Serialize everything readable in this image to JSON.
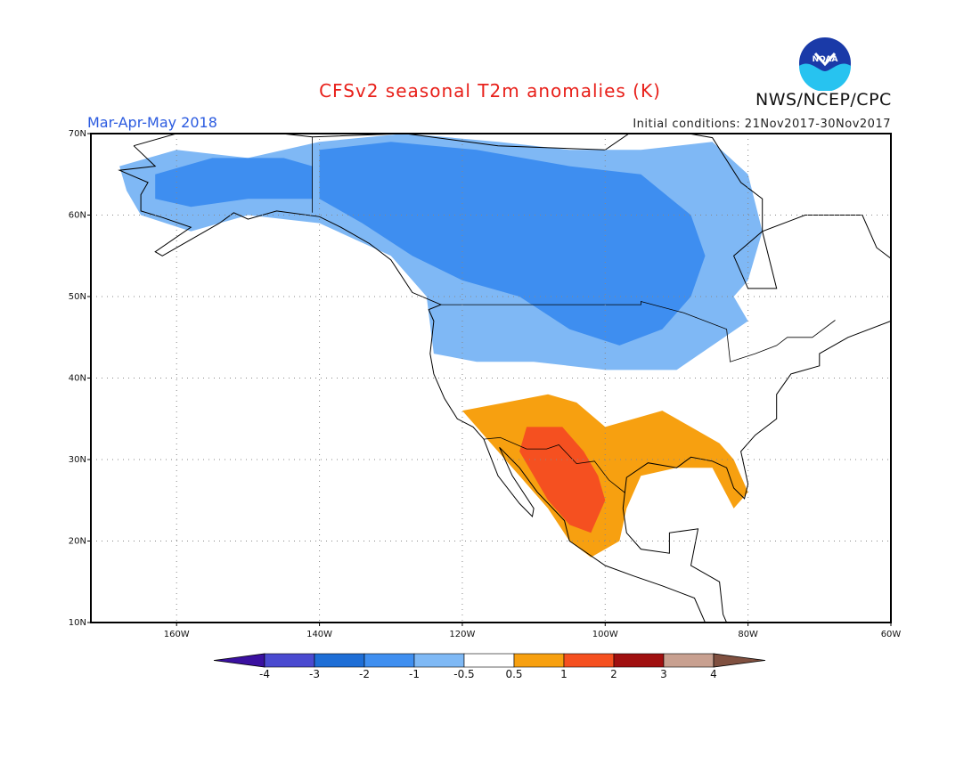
{
  "header": {
    "title": "CFSv2 seasonal T2m anomalies (K)",
    "period": "Mar-Apr-May 2018",
    "initial_conditions": "Initial conditions: 21Nov2017-30Nov2017",
    "agency": "NWS/NCEP/CPC",
    "logo_text": "NOAA"
  },
  "map": {
    "projection": "lat-lon",
    "lon_range": [
      -172,
      -60
    ],
    "lat_range": [
      10,
      70
    ],
    "lat_ticks": [
      {
        "value": 70,
        "label": "70N"
      },
      {
        "value": 60,
        "label": "60N"
      },
      {
        "value": 50,
        "label": "50N"
      },
      {
        "value": 40,
        "label": "40N"
      },
      {
        "value": 30,
        "label": "30N"
      },
      {
        "value": 20,
        "label": "20N"
      },
      {
        "value": 10,
        "label": "10N"
      }
    ],
    "lon_ticks": [
      {
        "value": -160,
        "label": "160W"
      },
      {
        "value": -140,
        "label": "140W"
      },
      {
        "value": -120,
        "label": "120W"
      },
      {
        "value": -100,
        "label": "100W"
      },
      {
        "value": -80,
        "label": "80W"
      },
      {
        "value": -60,
        "label": "60W"
      }
    ],
    "colors": {
      "land": "#ffffff",
      "coast": "#000000",
      "grid": "#888888",
      "frame": "#000000"
    },
    "anomaly_regions": [
      {
        "name": "cold-north",
        "class": "-1 to -0.5",
        "color": "#7fb8f5",
        "polygon": [
          [
            -168,
            66
          ],
          [
            -160,
            68
          ],
          [
            -150,
            67
          ],
          [
            -140,
            69
          ],
          [
            -128,
            70
          ],
          [
            -115,
            69
          ],
          [
            -105,
            68
          ],
          [
            -95,
            68
          ],
          [
            -85,
            69
          ],
          [
            -80,
            65
          ],
          [
            -78,
            58
          ],
          [
            -80,
            52
          ],
          [
            -82,
            50
          ],
          [
            -80,
            47
          ],
          [
            -85,
            44
          ],
          [
            -90,
            41
          ],
          [
            -100,
            41
          ],
          [
            -110,
            42
          ],
          [
            -118,
            42
          ],
          [
            -124,
            43
          ],
          [
            -125,
            50
          ],
          [
            -130,
            55
          ],
          [
            -140,
            59
          ],
          [
            -150,
            60
          ],
          [
            -158,
            58
          ],
          [
            -165,
            60
          ],
          [
            -167,
            63
          ]
        ]
      },
      {
        "name": "cold-core",
        "class": "-2 to -1",
        "color": "#3e8ef0",
        "polygon": [
          [
            -140,
            68
          ],
          [
            -130,
            69
          ],
          [
            -118,
            68
          ],
          [
            -105,
            66
          ],
          [
            -95,
            65
          ],
          [
            -88,
            60
          ],
          [
            -86,
            55
          ],
          [
            -88,
            50
          ],
          [
            -92,
            46
          ],
          [
            -98,
            44
          ],
          [
            -105,
            46
          ],
          [
            -112,
            50
          ],
          [
            -120,
            52
          ],
          [
            -127,
            55
          ],
          [
            -134,
            59
          ],
          [
            -140,
            62
          ]
        ]
      },
      {
        "name": "cold-alaska",
        "class": "-2 to -1",
        "color": "#3e8ef0",
        "polygon": [
          [
            -163,
            65
          ],
          [
            -155,
            67
          ],
          [
            -145,
            67
          ],
          [
            -141,
            66
          ],
          [
            -141,
            62
          ],
          [
            -150,
            62
          ],
          [
            -158,
            61
          ],
          [
            -163,
            62
          ]
        ]
      },
      {
        "name": "warm-south",
        "class": "0.5 to 1",
        "color": "#f7a010",
        "polygon": [
          [
            -120,
            36
          ],
          [
            -114,
            37
          ],
          [
            -108,
            38
          ],
          [
            -104,
            37
          ],
          [
            -100,
            34
          ],
          [
            -96,
            35
          ],
          [
            -92,
            36
          ],
          [
            -88,
            34
          ],
          [
            -84,
            32
          ],
          [
            -82,
            30
          ],
          [
            -80,
            26
          ],
          [
            -82,
            24
          ],
          [
            -85,
            29
          ],
          [
            -90,
            29
          ],
          [
            -95,
            28
          ],
          [
            -97,
            24
          ],
          [
            -98,
            20
          ],
          [
            -102,
            18
          ],
          [
            -105,
            20
          ],
          [
            -108,
            24
          ],
          [
            -110,
            26
          ],
          [
            -112,
            28
          ],
          [
            -114,
            30
          ],
          [
            -116,
            32
          ],
          [
            -118,
            34
          ]
        ]
      },
      {
        "name": "warm-core",
        "class": "1 to 2",
        "color": "#f55020",
        "polygon": [
          [
            -111,
            34
          ],
          [
            -106,
            34
          ],
          [
            -103,
            31
          ],
          [
            -101,
            28
          ],
          [
            -100,
            25
          ],
          [
            -102,
            21
          ],
          [
            -105,
            22
          ],
          [
            -108,
            25
          ],
          [
            -110,
            28
          ],
          [
            -112,
            31
          ]
        ]
      }
    ]
  },
  "colorbar": {
    "colors": [
      "#3a10a0",
      "#4a4ad0",
      "#1e6ed6",
      "#3f8ff0",
      "#7fb9f5",
      "#ffffff",
      "#f7a010",
      "#f55020",
      "#a01010",
      "#c8a090",
      "#805040"
    ],
    "labels": [
      "-4",
      "-3",
      "-2",
      "-1",
      "-0.5",
      "0.5",
      "1",
      "2",
      "3",
      "4"
    ]
  }
}
